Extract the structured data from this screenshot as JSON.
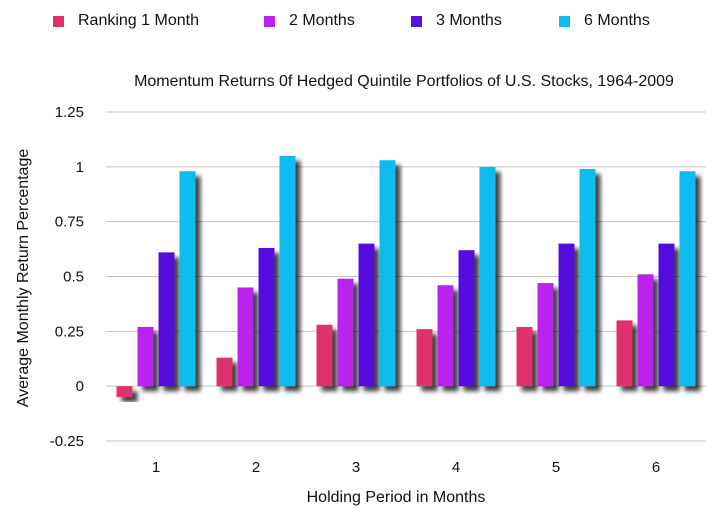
{
  "chart_data": {
    "type": "bar",
    "title": "Momentum Returns 0f Hedged Quintile Portfolios of U.S. Stocks, 1964-2009",
    "xlabel": "Holding Period in Months",
    "ylabel": "Average Monthly Return Percentage",
    "categories": [
      "1",
      "2",
      "3",
      "4",
      "5",
      "6"
    ],
    "ylim": [
      -0.25,
      1.25
    ],
    "yticks": [
      "-0.25",
      "0",
      "0.25",
      "0.5",
      "0.75",
      "1",
      "1.25"
    ],
    "grid": true,
    "legend_position": "top",
    "series": [
      {
        "name": "Ranking 1 Month",
        "color": "#e0306a",
        "values": [
          -0.05,
          0.13,
          0.28,
          0.26,
          0.27,
          0.3
        ]
      },
      {
        "name": "2 Months",
        "color": "#bb22ee",
        "values": [
          0.27,
          0.45,
          0.49,
          0.46,
          0.47,
          0.51
        ]
      },
      {
        "name": "3 Months",
        "color": "#5511dd",
        "values": [
          0.61,
          0.63,
          0.65,
          0.62,
          0.65,
          0.65
        ]
      },
      {
        "name": "6 Months",
        "color": "#11bbee",
        "values": [
          0.98,
          1.05,
          1.03,
          1.0,
          0.99,
          0.98
        ]
      }
    ]
  }
}
